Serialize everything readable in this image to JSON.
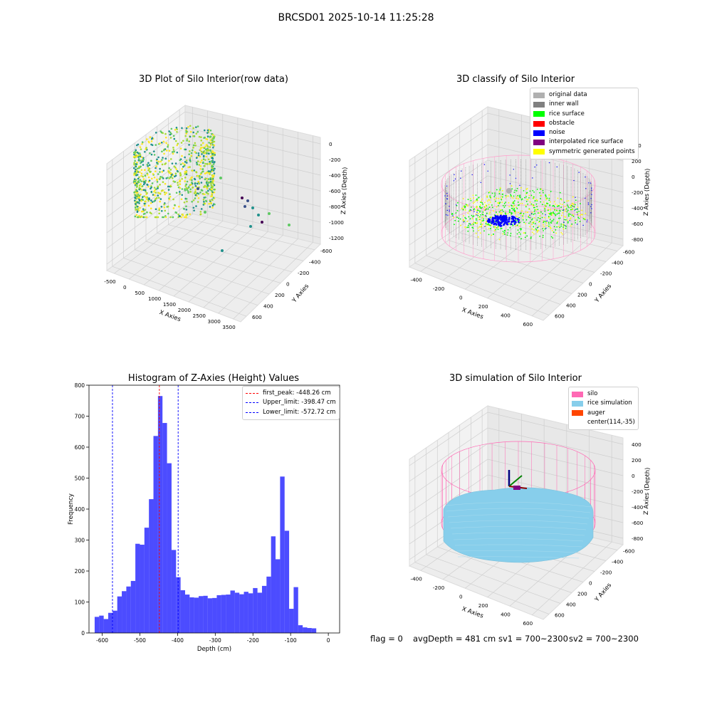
{
  "figure": {
    "suptitle": "BRCSD01 2025-10-14 11:25:28",
    "footer": {
      "flag": "flag = 0",
      "avg_depth": "avgDepth = 481 cm",
      "sv1": "sv1 = 700~2300",
      "sv2": "sv2 = 700~2300"
    }
  },
  "colors": {
    "original_data": "#b0b0b0",
    "inner_wall": "#808080",
    "rice_surface": "#00ff00",
    "obstacle": "#ff0000",
    "noise": "#0000ff",
    "interpolated_rice_surface": "#800080",
    "symmetric_generated_points": "#ffff00",
    "silo": "#ff69b4",
    "rice_simulation": "#87ceeb",
    "auger": "#ff4500",
    "histogram_bar": "#0000ff"
  },
  "chart_data": [
    {
      "type": "scatter",
      "subtype": "3d",
      "title": "3D Plot of Silo Interior(row data)",
      "xlabel": "X Axies",
      "ylabel": "Y Axies",
      "zlabel": "Z Axies (Depth)",
      "x_ticks": [
        "-500",
        "0",
        "500",
        "1000",
        "1500",
        "2000",
        "2500",
        "3000",
        "3500"
      ],
      "y_ticks": [
        "-600",
        "-400",
        "-200",
        "0",
        "200",
        "400",
        "600"
      ],
      "z_ticks": [
        "0",
        "-200",
        "-400",
        "-600",
        "-800",
        "-1000",
        "-1200"
      ],
      "colormap": "viridis"
    },
    {
      "type": "scatter",
      "subtype": "3d",
      "title": "3D classify of Silo Interior",
      "xlabel": "X Axies",
      "ylabel": "Y Axies",
      "zlabel": "Z Axies (Depth)",
      "x_ticks": [
        "-400",
        "-200",
        "0",
        "200",
        "400",
        "600"
      ],
      "y_ticks": [
        "-600",
        "-400",
        "-200",
        "0",
        "200",
        "400",
        "600"
      ],
      "z_ticks": [
        "400",
        "200",
        "0",
        "-200",
        "-400",
        "-600",
        "-800"
      ],
      "legend": [
        {
          "label": "original data",
          "color": "#b0b0b0"
        },
        {
          "label": "inner wall",
          "color": "#808080"
        },
        {
          "label": "rice surface",
          "color": "#00ff00"
        },
        {
          "label": "obstacle",
          "color": "#ff0000"
        },
        {
          "label": "noise",
          "color": "#0000ff"
        },
        {
          "label": "interpolated rice surface",
          "color": "#800080"
        },
        {
          "label": "symmetric generated points",
          "color": "#ffff00"
        }
      ],
      "legend_loc": "upper right"
    },
    {
      "type": "bar",
      "subtype": "histogram",
      "title": "Histogram of Z-Axies (Height) Values",
      "xlabel": "Depth (cm)",
      "ylabel": "Frequency",
      "xlim": [
        -635,
        30
      ],
      "ylim": [
        0,
        800
      ],
      "x_ticks": [
        -600,
        -500,
        -400,
        -300,
        -200,
        -100,
        0
      ],
      "y_ticks": [
        0,
        100,
        200,
        300,
        400,
        500,
        600,
        700,
        800
      ],
      "bin_width": 12,
      "bin_start": -620,
      "values": [
        52,
        56,
        45,
        65,
        72,
        118,
        135,
        150,
        168,
        288,
        285,
        340,
        432,
        636,
        765,
        678,
        548,
        268,
        180,
        138,
        124,
        115,
        114,
        119,
        120,
        112,
        113,
        122,
        123,
        124,
        137,
        130,
        125,
        133,
        128,
        145,
        130,
        152,
        182,
        312,
        238,
        505,
        330,
        78,
        148,
        25,
        18,
        16,
        15
      ],
      "vlines": [
        {
          "label": "first_peak: -448.26 cm",
          "x": -448.26,
          "color": "#ff0000"
        },
        {
          "label": "Upper_limit: -398.47 cm",
          "x": -398.47,
          "color": "#0000ff"
        },
        {
          "label": "Lower_limit: -572.72 cm",
          "x": -572.72,
          "color": "#0000ff"
        }
      ],
      "legend_loc": "upper right"
    },
    {
      "type": "surface",
      "subtype": "3d",
      "title": "3D simulation of Silo Interior",
      "xlabel": "X Axies",
      "ylabel": "Y Axies",
      "zlabel": "Z Axies (Depth)",
      "x_ticks": [
        "-400",
        "-200",
        "0",
        "200",
        "400",
        "600"
      ],
      "y_ticks": [
        "-600",
        "-400",
        "-200",
        "0",
        "200",
        "400",
        "600"
      ],
      "z_ticks": [
        "400",
        "200",
        "0",
        "-200",
        "-400",
        "-600",
        "-800"
      ],
      "legend": [
        {
          "label": "silo",
          "color": "#ff69b4"
        },
        {
          "label": "rice simulation",
          "color": "#87ceeb"
        },
        {
          "label": "auger",
          "color": "#ff4500"
        },
        {
          "label": "center(114,-35)",
          "color": ""
        }
      ],
      "legend_loc": "upper right"
    }
  ]
}
